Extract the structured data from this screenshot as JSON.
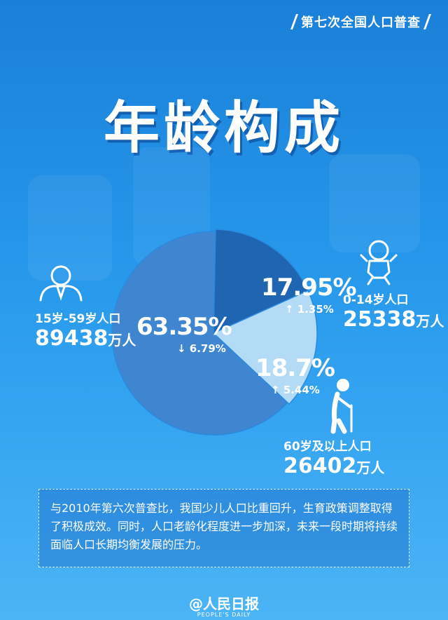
{
  "header": {
    "tag": "第七次全国人口普查"
  },
  "title": "年龄构成",
  "chart_data": {
    "type": "pie",
    "slices": [
      {
        "name": "15岁-59岁人口",
        "percent": 63.35,
        "percent_label": "63.35%",
        "change": "↓ 6.79%",
        "population": "89438",
        "color": "#3f85cf"
      },
      {
        "name": "0-14岁人口",
        "percent": 17.95,
        "percent_label": "17.95%",
        "change": "↑ 1.35%",
        "population": "25338",
        "color": "#1f65b2"
      },
      {
        "name": "60岁及以上人口",
        "percent": 18.7,
        "percent_label": "18.7%",
        "change": "↑ 5.44%",
        "population": "26402",
        "color": "#b4dbf6"
      }
    ],
    "unit": "万人"
  },
  "note": "与2010年第六次普查比，我国少儿人口比重回升，生育政策调整取得了积极成效。同时，人口老龄化程度进一步加深，未来一段时期将持续面临人口长期均衡发展的压力。",
  "logo": {
    "main": "@人民日报",
    "sub": "PEOPLE'S DAILY"
  }
}
